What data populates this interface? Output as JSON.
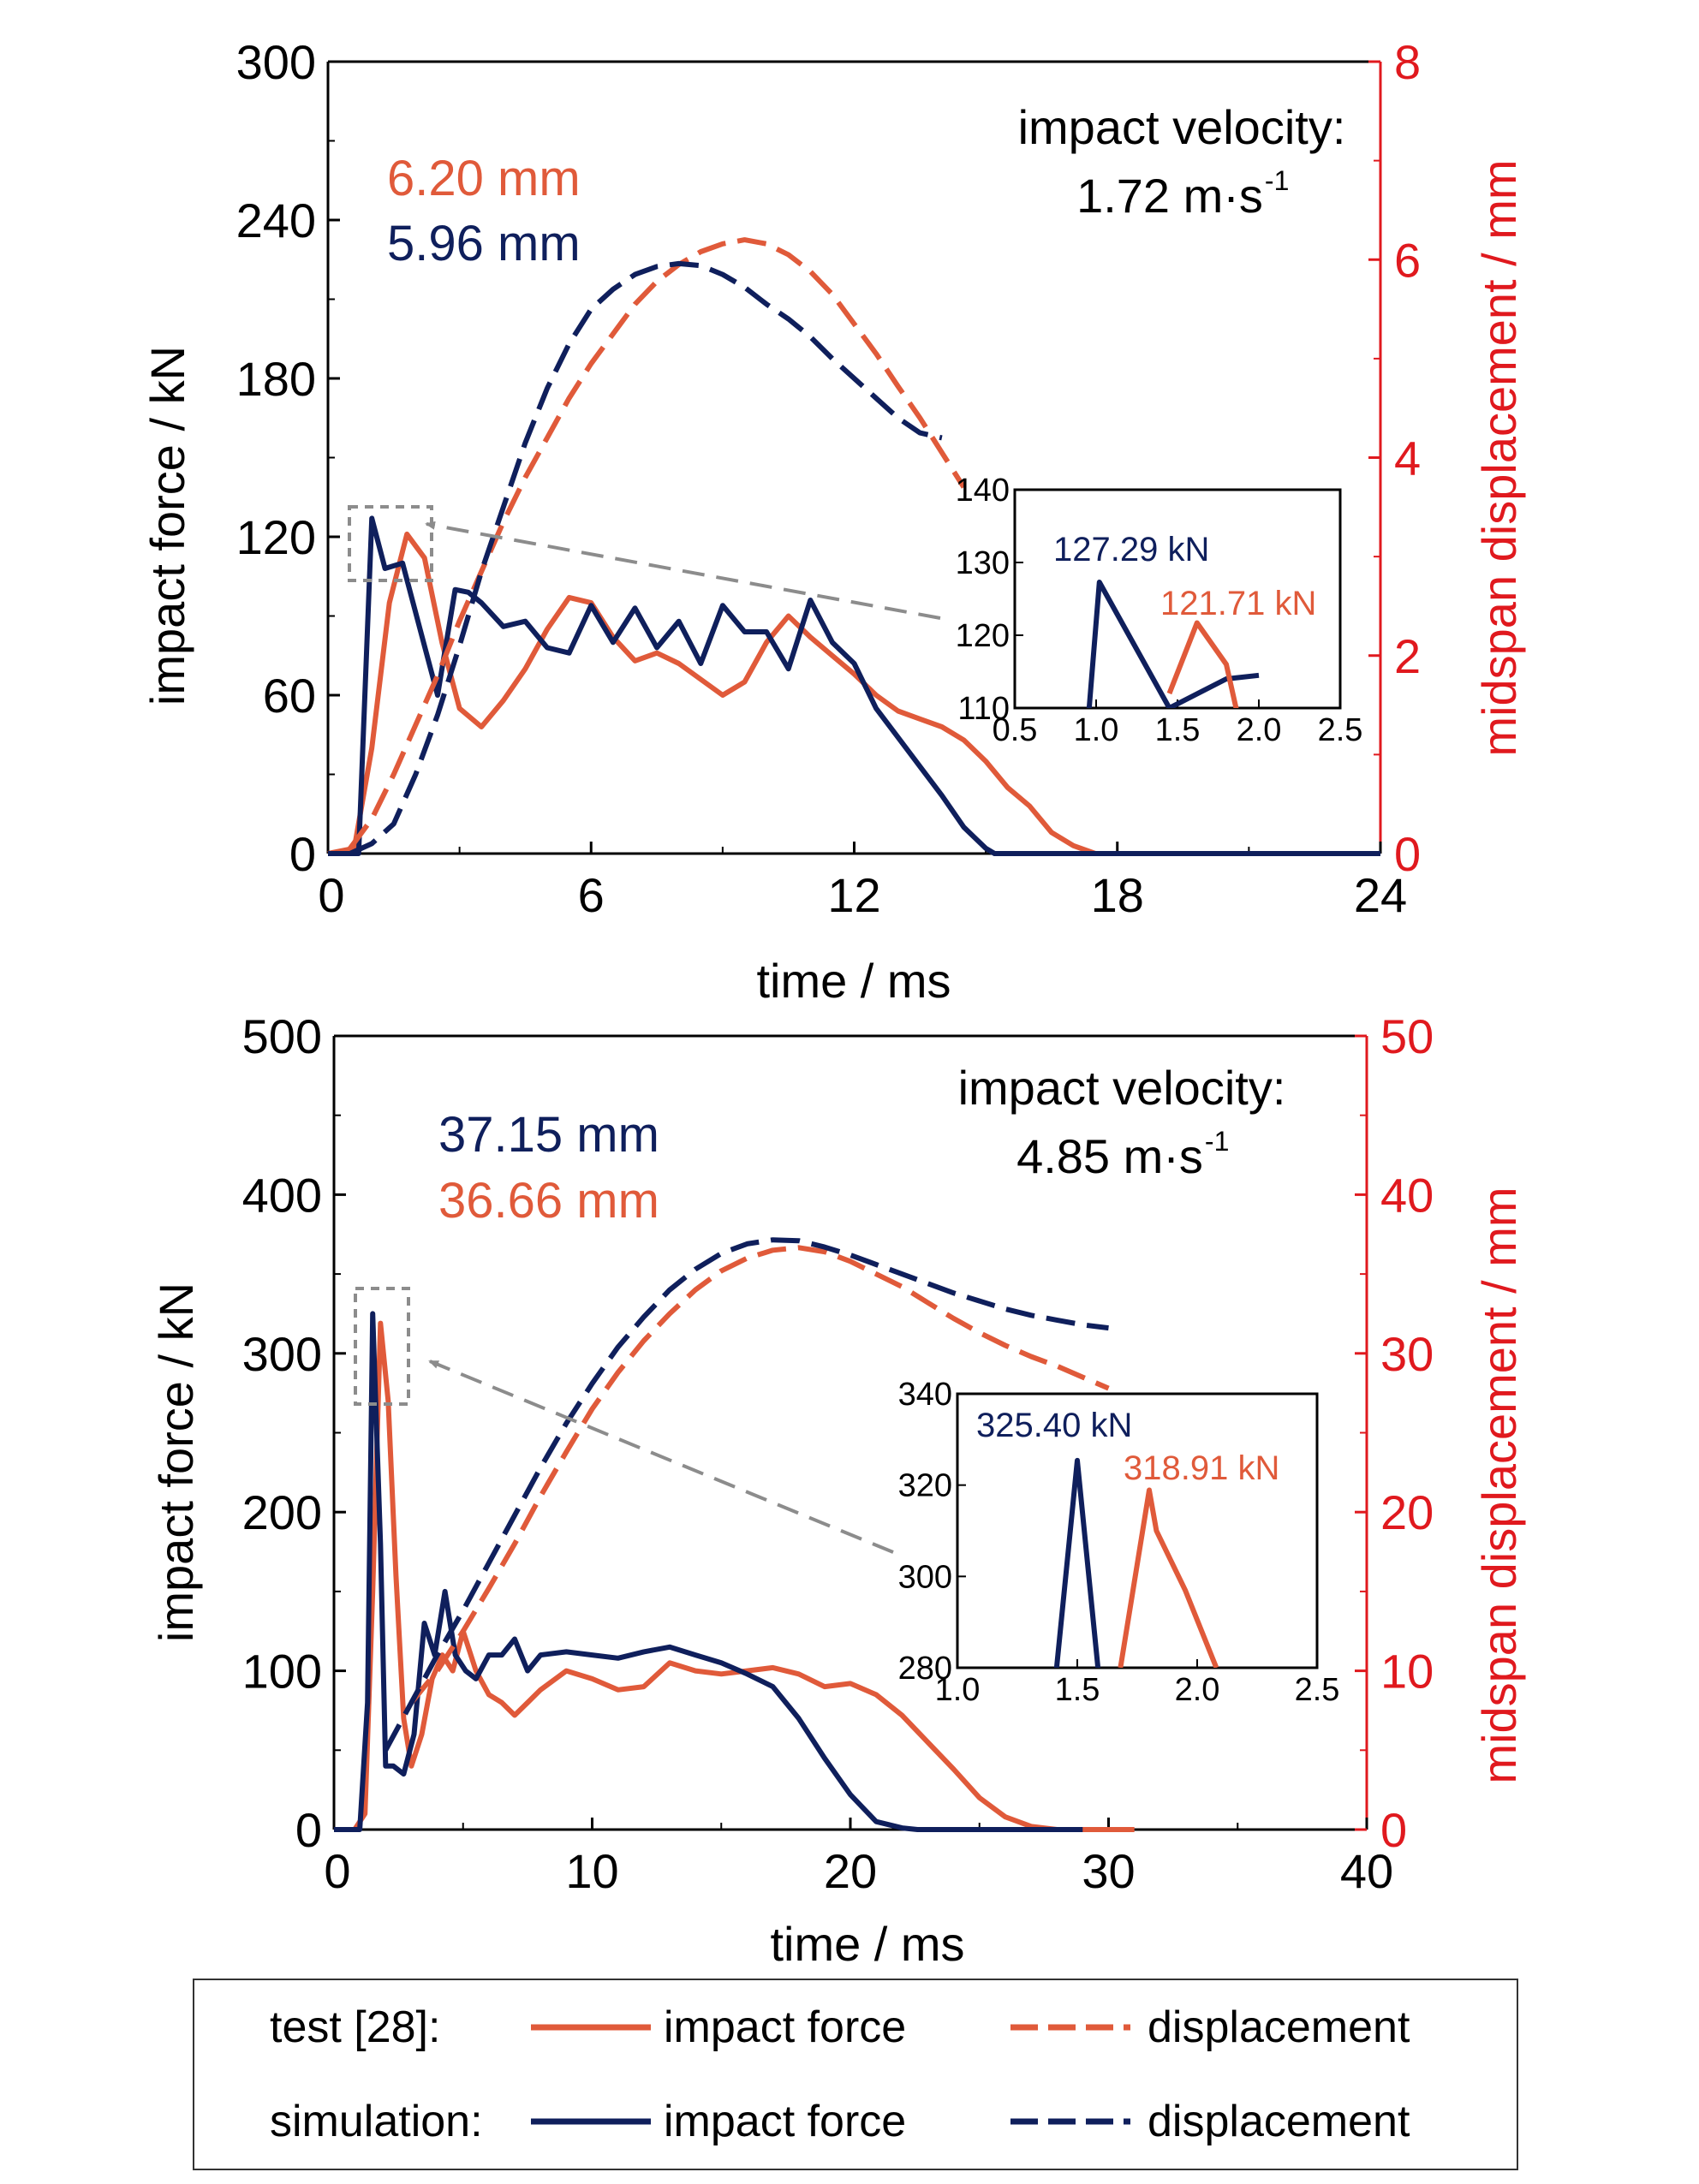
{
  "colors": {
    "test": "#e05a3a",
    "simulation": "#0f1f5c",
    "right_axis": "#e0191e",
    "arrow": "#8c8c8c",
    "axis": "#000000"
  },
  "legend": {
    "test_label": "test [28]:",
    "sim_label": "simulation:",
    "force_label": "impact force",
    "disp_label": "displacement"
  },
  "chart_data": [
    {
      "type": "line",
      "xlabel": "time / ms",
      "ylabel": "impact force / kN",
      "y2label": "midspan displacement / mm",
      "xlim": [
        0,
        24
      ],
      "ylim": [
        0,
        300
      ],
      "y2lim": [
        0,
        8
      ],
      "xticks": [
        "0",
        "6",
        "12",
        "18",
        "24"
      ],
      "yticks": [
        "0",
        "60",
        "120",
        "180",
        "240",
        "300"
      ],
      "y2ticks": [
        "0",
        "2",
        "4",
        "6",
        "8"
      ],
      "velocity_title": "impact velocity:",
      "velocity_value": "1.72 m·s",
      "velocity_exp": "-1",
      "peak_disp": [
        {
          "text": "6.20 mm",
          "series": "test"
        },
        {
          "text": "5.96 mm",
          "series": "simulation"
        }
      ],
      "series": [
        {
          "name": "test [28]: impact force",
          "axis": "left",
          "style": "solid",
          "color_key": "test",
          "x": [
            0,
            0.6,
            1.0,
            1.4,
            1.8,
            2.2,
            2.6,
            3.0,
            3.5,
            4.0,
            4.5,
            5.0,
            5.5,
            6.0,
            6.5,
            7.0,
            7.5,
            8.0,
            8.5,
            9.0,
            9.5,
            10.0,
            10.5,
            11.0,
            11.5,
            12.0,
            12.5,
            13.0,
            13.5,
            14.0,
            14.5,
            15.0,
            15.5,
            16.0,
            16.5,
            17.0,
            17.5,
            18.0,
            24.0
          ],
          "y": [
            0,
            2,
            40,
            95,
            121,
            112,
            80,
            55,
            48,
            58,
            70,
            85,
            97,
            95,
            82,
            73,
            76,
            72,
            66,
            60,
            65,
            80,
            90,
            82,
            75,
            68,
            60,
            54,
            51,
            48,
            43,
            35,
            25,
            18,
            8,
            3,
            0,
            0,
            0
          ]
        },
        {
          "name": "simulation: impact force",
          "axis": "left",
          "style": "solid",
          "color_key": "simulation",
          "x": [
            0,
            0.7,
            1.0,
            1.3,
            1.7,
            2.1,
            2.5,
            2.9,
            3.2,
            3.5,
            4.0,
            4.5,
            5.0,
            5.5,
            6.0,
            6.5,
            7.0,
            7.5,
            8.0,
            8.5,
            9.0,
            9.5,
            10.0,
            10.5,
            11.0,
            11.5,
            12.0,
            12.5,
            13.0,
            13.5,
            14.0,
            14.5,
            15.0,
            15.2,
            24.0
          ],
          "y": [
            0,
            0,
            127,
            108,
            110,
            85,
            60,
            100,
            99,
            95,
            86,
            88,
            78,
            76,
            94,
            80,
            93,
            78,
            88,
            72,
            94,
            84,
            84,
            70,
            96,
            80,
            72,
            55,
            44,
            33,
            22,
            10,
            2,
            0,
            0
          ]
        },
        {
          "name": "test [28]: displacement",
          "axis": "right",
          "style": "dashed",
          "color_key": "test",
          "x": [
            0.5,
            1.0,
            1.5,
            2.0,
            2.5,
            3.0,
            3.5,
            4.0,
            4.5,
            5.0,
            5.5,
            6.0,
            6.5,
            7.0,
            7.5,
            8.0,
            8.5,
            9.0,
            9.5,
            10.0,
            10.5,
            11.0,
            11.5,
            12.0,
            12.5,
            13.0,
            13.5,
            14.0,
            14.5
          ],
          "y": [
            0.05,
            0.35,
            0.8,
            1.3,
            1.8,
            2.35,
            2.85,
            3.35,
            3.8,
            4.2,
            4.6,
            4.95,
            5.25,
            5.55,
            5.78,
            5.95,
            6.08,
            6.16,
            6.2,
            6.16,
            6.05,
            5.88,
            5.65,
            5.35,
            5.05,
            4.72,
            4.4,
            4.05,
            3.7
          ]
        },
        {
          "name": "simulation: displacement",
          "axis": "right",
          "style": "dashed",
          "color_key": "simulation",
          "x": [
            0.5,
            1.0,
            1.5,
            2.0,
            2.5,
            3.0,
            3.5,
            4.0,
            4.5,
            5.0,
            5.5,
            6.0,
            6.5,
            7.0,
            7.5,
            8.0,
            8.5,
            9.0,
            9.5,
            10.0,
            10.5,
            11.0,
            11.5,
            12.0,
            12.5,
            13.0,
            13.5,
            14.0
          ],
          "y": [
            0,
            0.1,
            0.3,
            0.8,
            1.4,
            2.1,
            2.85,
            3.5,
            4.15,
            4.7,
            5.15,
            5.5,
            5.7,
            5.85,
            5.93,
            5.96,
            5.94,
            5.85,
            5.72,
            5.55,
            5.4,
            5.22,
            5.0,
            4.8,
            4.6,
            4.4,
            4.25,
            4.2
          ]
        }
      ],
      "inset": {
        "xlim": [
          0.5,
          2.5
        ],
        "ylim": [
          110,
          140
        ],
        "xticks": [
          "0.5",
          "1.0",
          "1.5",
          "2.0",
          "2.5"
        ],
        "yticks": [
          "110",
          "120",
          "130",
          "140"
        ],
        "labels": [
          {
            "text": "127.29 kN",
            "series": "simulation"
          },
          {
            "text": "121.71 kN",
            "series": "test"
          }
        ],
        "series": [
          {
            "color_key": "simulation",
            "x": [
              0.95,
              1.02,
              1.45,
              1.8,
              2.0
            ],
            "y": [
              108,
              127.29,
              110,
              114,
              114.5
            ]
          },
          {
            "color_key": "test",
            "x": [
              1.45,
              1.62,
              1.8,
              1.88
            ],
            "y": [
              112,
              121.71,
              116,
              108
            ]
          }
        ]
      }
    },
    {
      "type": "line",
      "xlabel": "time / ms",
      "ylabel": "impact force / kN",
      "y2label": "midspan displacement / mm",
      "xlim": [
        0,
        40
      ],
      "ylim": [
        0,
        500
      ],
      "y2lim": [
        0,
        50
      ],
      "xticks": [
        "0",
        "10",
        "20",
        "30",
        "40"
      ],
      "yticks": [
        "0",
        "100",
        "200",
        "300",
        "400",
        "500"
      ],
      "y2ticks": [
        "0",
        "10",
        "20",
        "30",
        "40",
        "50"
      ],
      "velocity_title": "impact velocity:",
      "velocity_value": "4.85 m·s",
      "velocity_exp": "-1",
      "peak_disp": [
        {
          "text": "37.15 mm",
          "series": "simulation"
        },
        {
          "text": "36.66 mm",
          "series": "test"
        }
      ],
      "series": [
        {
          "name": "test [28]: impact force",
          "axis": "left",
          "style": "solid",
          "color_key": "test",
          "x": [
            0,
            0.8,
            1.2,
            1.5,
            1.8,
            2.1,
            2.4,
            2.7,
            3.0,
            3.4,
            3.8,
            4.2,
            4.6,
            5.0,
            5.5,
            6.0,
            6.5,
            7.0,
            7.5,
            8.0,
            9.0,
            10.0,
            11.0,
            12.0,
            13.0,
            14.0,
            15.0,
            16.0,
            17.0,
            18.0,
            19.0,
            20.0,
            21.0,
            22.0,
            23.0,
            24.0,
            25.0,
            26.0,
            27.0,
            28.0,
            31.0
          ],
          "y": [
            0,
            0,
            10,
            150,
            319,
            270,
            160,
            70,
            40,
            60,
            95,
            110,
            100,
            125,
            100,
            85,
            80,
            72,
            80,
            88,
            100,
            95,
            88,
            90,
            105,
            100,
            98,
            100,
            102,
            98,
            90,
            92,
            85,
            72,
            55,
            38,
            20,
            8,
            2,
            0,
            0
          ]
        },
        {
          "name": "simulation: impact force",
          "axis": "left",
          "style": "solid",
          "color_key": "simulation",
          "x": [
            0,
            1.0,
            1.3,
            1.5,
            1.8,
            2.0,
            2.3,
            2.7,
            3.1,
            3.5,
            3.9,
            4.3,
            4.7,
            5.1,
            5.5,
            6.0,
            6.5,
            7.0,
            7.5,
            8.0,
            9.0,
            10.0,
            11.0,
            12.0,
            13.0,
            14.0,
            15.0,
            16.0,
            17.0,
            18.0,
            19.0,
            20.0,
            21.0,
            22.0,
            22.6,
            29.0
          ],
          "y": [
            0,
            0,
            80,
            325,
            180,
            40,
            40,
            35,
            60,
            130,
            110,
            150,
            110,
            100,
            95,
            110,
            110,
            120,
            100,
            110,
            112,
            110,
            108,
            112,
            115,
            110,
            105,
            98,
            90,
            70,
            45,
            22,
            5,
            1,
            0,
            0
          ]
        },
        {
          "name": "test [28]: displacement",
          "axis": "right",
          "style": "dashed",
          "color_key": "test",
          "x": [
            3,
            4,
            5,
            6,
            7,
            8,
            9,
            10,
            11,
            12,
            13,
            14,
            15,
            16,
            17,
            18,
            19,
            20,
            21,
            22,
            23,
            24,
            25,
            26,
            27,
            28,
            29,
            30
          ],
          "y": [
            8,
            10,
            12.5,
            15.2,
            18,
            21,
            23.8,
            26.5,
            28.8,
            30.8,
            32.5,
            34,
            35.2,
            36,
            36.5,
            36.66,
            36.4,
            35.8,
            35,
            34.2,
            33.2,
            32.2,
            31.3,
            30.5,
            29.8,
            29.2,
            28.5,
            27.8
          ]
        },
        {
          "name": "simulation: displacement",
          "axis": "right",
          "style": "dashed",
          "color_key": "simulation",
          "x": [
            2,
            3,
            4,
            5,
            6,
            7,
            8,
            9,
            10,
            11,
            12,
            13,
            14,
            15,
            16,
            17,
            18,
            19,
            20,
            21,
            22,
            23,
            24,
            25,
            26,
            27,
            28,
            29,
            30
          ],
          "y": [
            5,
            8,
            11,
            13.8,
            16.8,
            19.8,
            22.8,
            25.6,
            28.1,
            30.4,
            32.3,
            34,
            35.3,
            36.3,
            36.9,
            37.15,
            37.1,
            36.7,
            36.2,
            35.6,
            35,
            34.4,
            33.8,
            33.3,
            32.8,
            32.4,
            32.1,
            31.8,
            31.6
          ]
        }
      ],
      "inset": {
        "xlim": [
          1.0,
          2.5
        ],
        "ylim": [
          280,
          340
        ],
        "xticks": [
          "1.0",
          "1.5",
          "2.0",
          "2.5"
        ],
        "yticks": [
          "280",
          "300",
          "320",
          "340"
        ],
        "labels": [
          {
            "text": "325.40 kN",
            "series": "simulation"
          },
          {
            "text": "318.91 kN",
            "series": "test"
          }
        ],
        "series": [
          {
            "color_key": "simulation",
            "x": [
              1.41,
              1.5,
              1.59
            ],
            "y": [
              278,
              325.4,
              278
            ]
          },
          {
            "color_key": "test",
            "x": [
              1.68,
              1.8,
              1.83,
              1.95,
              2.08
            ],
            "y": [
              280,
              318.91,
              310,
              297,
              280
            ]
          }
        ]
      }
    }
  ]
}
